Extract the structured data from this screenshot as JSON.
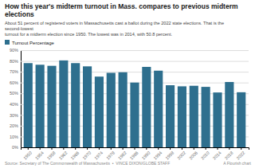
{
  "chart_data": {
    "type": "bar",
    "title": "How this year's midterm turnout in Mass. compares to previous midterm elections",
    "subtitle": "About 51 percent of registered voters in Massachusetts cast a ballot during the 2022 state elections. That is the second-lowest\nturnout for a midterm election since 1950. The lowest was in 2014, with 50.8 percent.",
    "categories": [
      "1950",
      "1954",
      "1958",
      "1962",
      "1966",
      "1970",
      "1974",
      "1978",
      "1982",
      "1986",
      "1990",
      "1994",
      "1998",
      "2002",
      "2006",
      "2010",
      "2014",
      "2018",
      "2022"
    ],
    "series": [
      {
        "name": "Turnout Percentage",
        "color": "#2e6f8e",
        "values": [
          78.0,
          76.5,
          75.5,
          80.5,
          78.0,
          75.0,
          65.5,
          69.0,
          69.5,
          60.0,
          74.5,
          71.0,
          57.5,
          56.5,
          57.0,
          56.0,
          50.8,
          60.5,
          51.0
        ]
      }
    ],
    "ylim": [
      0,
      90
    ],
    "yticks": [
      {
        "value": 0,
        "label": "0%"
      },
      {
        "value": 10,
        "label": "10%"
      },
      {
        "value": 20,
        "label": "20%"
      },
      {
        "value": 30,
        "label": "30%"
      },
      {
        "value": 40,
        "label": "40%"
      },
      {
        "value": 50,
        "label": "50%"
      },
      {
        "value": 60,
        "label": "60%"
      },
      {
        "value": 70,
        "label": "70%"
      },
      {
        "value": 80,
        "label": "80%"
      },
      {
        "value": 90,
        "label": "90%"
      }
    ],
    "grid": true,
    "annotations": [
      "Source: Secretary of The Commonwealth of Massachusetts  •  VINCE DIXON/GLOBE STAFF",
      "A Flourish chart"
    ]
  }
}
